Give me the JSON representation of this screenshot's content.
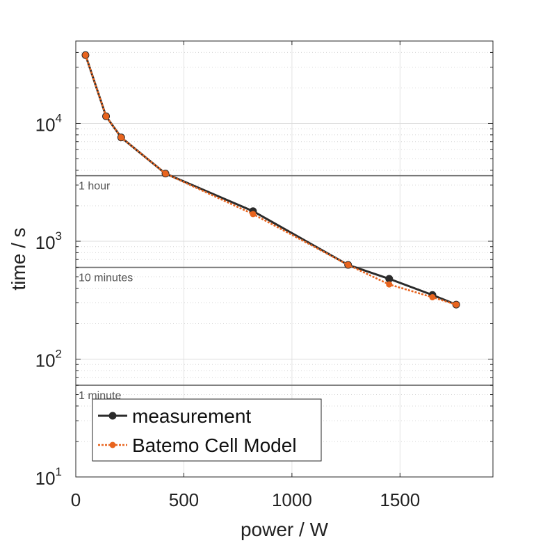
{
  "chart_data": {
    "type": "line",
    "xlabel": "power / W",
    "ylabel": "time / s",
    "x_scale": "linear",
    "y_scale": "log",
    "xlim": [
      0,
      1930
    ],
    "ylim": [
      10,
      50000
    ],
    "x_ticks": [
      {
        "value": 0,
        "label": "0"
      },
      {
        "value": 500,
        "label": "500"
      },
      {
        "value": 1000,
        "label": "1000"
      },
      {
        "value": 1500,
        "label": "1500"
      }
    ],
    "y_ticks": [
      {
        "value": 10,
        "base": "10",
        "exp": "1"
      },
      {
        "value": 100,
        "base": "10",
        "exp": "2"
      },
      {
        "value": 1000,
        "base": "10",
        "exp": "3"
      },
      {
        "value": 10000,
        "base": "10",
        "exp": "4"
      }
    ],
    "grid": true,
    "legend_position": "bottom-left",
    "reference_lines": [
      {
        "value": 3600,
        "label": "1 hour"
      },
      {
        "value": 600,
        "label": "10 minutes"
      },
      {
        "value": 60,
        "label": "1 minute"
      }
    ],
    "series": [
      {
        "name": "measurement",
        "color": "#2b2b2b",
        "line_style": "solid",
        "x": [
          45,
          140,
          210,
          415,
          820,
          1260,
          1450,
          1650,
          1760
        ],
        "y": [
          38000,
          11500,
          7600,
          3750,
          1800,
          630,
          480,
          350,
          290
        ]
      },
      {
        "name": "Batemo Cell Model",
        "color": "#e8641e",
        "line_style": "dotted",
        "x": [
          45,
          140,
          210,
          415,
          820,
          1260,
          1450,
          1650,
          1760
        ],
        "y": [
          38000,
          11500,
          7600,
          3750,
          1700,
          630,
          430,
          335,
          290
        ]
      }
    ]
  }
}
